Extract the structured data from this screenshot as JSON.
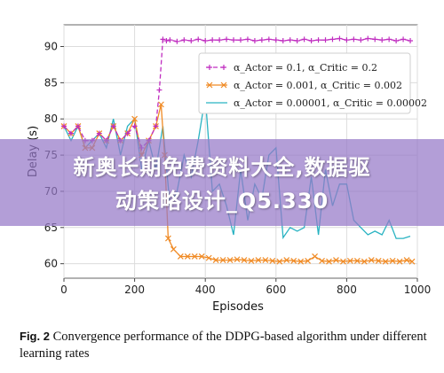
{
  "chart_data": {
    "type": "line",
    "xlabel": "Episodes",
    "ylabel": "Delay (s)",
    "xlim": [
      0,
      1000
    ],
    "ylim": [
      58,
      93
    ],
    "xticks": [
      0,
      200,
      400,
      600,
      800,
      1000
    ],
    "yticks": [
      60,
      65,
      70,
      75,
      80,
      85,
      90
    ],
    "grid": true,
    "legend_position": "top-right",
    "series": [
      {
        "name": "α_Actor = 0.1, α_Critic = 0.2",
        "color": "#c02ec0",
        "style": "dashed",
        "marker": "plus",
        "x": [
          0,
          20,
          40,
          60,
          80,
          100,
          120,
          140,
          160,
          180,
          200,
          220,
          240,
          260,
          270,
          280,
          290,
          300,
          320,
          340,
          360,
          380,
          400,
          420,
          440,
          460,
          480,
          500,
          520,
          540,
          560,
          580,
          600,
          620,
          640,
          660,
          680,
          700,
          720,
          740,
          760,
          780,
          800,
          820,
          840,
          860,
          880,
          900,
          920,
          940,
          960,
          980
        ],
        "y": [
          79,
          78,
          79,
          77,
          77,
          78,
          77,
          79,
          77,
          78,
          79,
          76,
          77,
          79,
          84,
          91.0,
          90.8,
          90.9,
          90.7,
          90.9,
          90.8,
          91.0,
          90.8,
          90.9,
          90.9,
          91.0,
          90.9,
          90.9,
          91.0,
          90.8,
          90.9,
          91.0,
          90.9,
          90.8,
          90.9,
          90.8,
          91.0,
          90.8,
          90.9,
          90.9,
          91.0,
          91.1,
          90.9,
          91.0,
          90.9,
          91.1,
          91.0,
          90.9,
          91.0,
          90.8,
          91.0,
          90.8
        ]
      },
      {
        "name": "α_Actor = 0.001, α_Critic = 0.002",
        "color": "#f08a24",
        "style": "solid",
        "marker": "x",
        "x": [
          0,
          20,
          40,
          60,
          80,
          100,
          120,
          140,
          160,
          180,
          200,
          220,
          240,
          260,
          275,
          285,
          295,
          310,
          330,
          350,
          370,
          390,
          410,
          430,
          450,
          470,
          490,
          510,
          530,
          550,
          570,
          590,
          610,
          630,
          650,
          670,
          690,
          710,
          730,
          750,
          770,
          790,
          810,
          830,
          850,
          870,
          890,
          910,
          930,
          950,
          970,
          985
        ],
        "y": [
          79,
          78,
          79,
          76,
          76,
          78,
          77,
          79,
          77,
          78,
          80,
          75,
          77,
          79,
          82,
          75,
          63.5,
          62,
          61,
          61,
          61,
          61,
          60.8,
          60.5,
          60.5,
          60.5,
          60.6,
          60.5,
          60.4,
          60.5,
          60.5,
          60.4,
          60.3,
          60.5,
          60.4,
          60.3,
          60.4,
          61.0,
          60.4,
          60.3,
          60.5,
          60.3,
          60.4,
          60.4,
          60.3,
          60.5,
          60.4,
          60.3,
          60.4,
          60.3,
          60.5,
          60.3
        ]
      },
      {
        "name": "α_Actor = 0.00001, α_Critic = 0.00002",
        "color": "#29b3c2",
        "style": "solid",
        "marker": "none",
        "x": [
          0,
          20,
          40,
          60,
          80,
          100,
          120,
          140,
          160,
          180,
          200,
          220,
          240,
          260,
          280,
          300,
          320,
          340,
          360,
          380,
          400,
          420,
          440,
          460,
          480,
          500,
          520,
          540,
          560,
          580,
          600,
          620,
          640,
          660,
          680,
          700,
          720,
          740,
          760,
          780,
          800,
          820,
          840,
          860,
          880,
          900,
          920,
          940,
          960,
          980
        ],
        "y": [
          79,
          77,
          79,
          76,
          77,
          78,
          76,
          80,
          75,
          79,
          80,
          73,
          77,
          73,
          79,
          68,
          70,
          75,
          72,
          77,
          83,
          70,
          71,
          68,
          64,
          73,
          66,
          71,
          69,
          75,
          76,
          63.6,
          65,
          64.5,
          65,
          72,
          64,
          73,
          68,
          71,
          71,
          66,
          65,
          64,
          64.5,
          64,
          66,
          63.5,
          63.5,
          63.8
        ]
      }
    ]
  },
  "overlay": {
    "line1": "新奥长期免费资料大全,数据驱",
    "line2": "动策略设计_Q5.330"
  },
  "caption": {
    "label": "Fig. 2",
    "text": "Convergence performance of the DDPG-based algorithm under different learning rates"
  }
}
